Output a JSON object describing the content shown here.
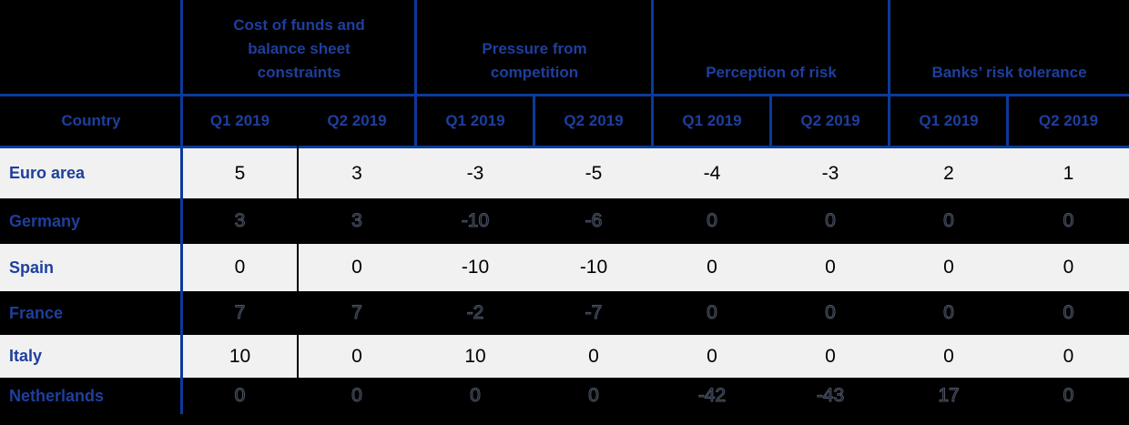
{
  "table": {
    "corner_label": "",
    "country_header": "Country",
    "groups": [
      {
        "label": "Cost of funds and\nbalance sheet\nconstraints"
      },
      {
        "label": "Pressure from\ncompetition"
      },
      {
        "label": "Perception of risk"
      },
      {
        "label": "Banks’ risk tolerance"
      }
    ],
    "quarter_headers": [
      "Q1 2019",
      "Q2 2019",
      "Q1 2019",
      "Q2 2019",
      "Q1 2019",
      "Q2 2019",
      "Q1 2019",
      "Q2 2019"
    ],
    "rows": [
      {
        "country": "Euro area",
        "variant": "light",
        "values": [
          "5",
          "3",
          "-3",
          "-5",
          "-4",
          "-3",
          "2",
          "1"
        ]
      },
      {
        "country": "Germany",
        "variant": "dark",
        "values": [
          "3",
          "3",
          "-10",
          "-6",
          "0",
          "0",
          "0",
          "0"
        ]
      },
      {
        "country": "Spain",
        "variant": "light",
        "values": [
          "0",
          "0",
          "-10",
          "-10",
          "0",
          "0",
          "0",
          "0"
        ]
      },
      {
        "country": "France",
        "variant": "dark",
        "values": [
          "7",
          "7",
          "-2",
          "-7",
          "0",
          "0",
          "0",
          "0"
        ]
      },
      {
        "country": "Italy",
        "variant": "light",
        "values": [
          "10",
          "0",
          "10",
          "0",
          "0",
          "0",
          "0",
          "0"
        ]
      },
      {
        "country": "Netherlands",
        "variant": "dark",
        "values": [
          "0",
          "0",
          "0",
          "0",
          "-42",
          "-43",
          "17",
          "0"
        ]
      }
    ],
    "colors": {
      "header_text_blue": "#1E3F9D",
      "border_blue": "#0B3A9C",
      "light_row_bg": "#F1F1F1",
      "dark_row_bg": "#000000"
    }
  },
  "chart_data": {
    "type": "table",
    "title": "",
    "column_groups": [
      "Cost of funds and balance sheet constraints",
      "Pressure from competition",
      "Perception of risk",
      "Banks’ risk tolerance"
    ],
    "columns": [
      "Country",
      "Q1 2019",
      "Q2 2019",
      "Q1 2019",
      "Q2 2019",
      "Q1 2019",
      "Q2 2019",
      "Q1 2019",
      "Q2 2019"
    ],
    "rows": [
      {
        "country": "Euro area",
        "values": [
          5,
          3,
          -3,
          -5,
          -4,
          -3,
          2,
          1
        ]
      },
      {
        "country": "Germany",
        "values": [
          3,
          3,
          -10,
          -6,
          0,
          0,
          0,
          0
        ]
      },
      {
        "country": "Spain",
        "values": [
          0,
          0,
          -10,
          -10,
          0,
          0,
          0,
          0
        ]
      },
      {
        "country": "France",
        "values": [
          7,
          7,
          -2,
          -7,
          0,
          0,
          0,
          0
        ]
      },
      {
        "country": "Italy",
        "values": [
          10,
          0,
          10,
          0,
          0,
          0,
          0,
          0
        ]
      },
      {
        "country": "Netherlands",
        "values": [
          0,
          0,
          0,
          0,
          -42,
          -43,
          17,
          0
        ]
      }
    ]
  }
}
